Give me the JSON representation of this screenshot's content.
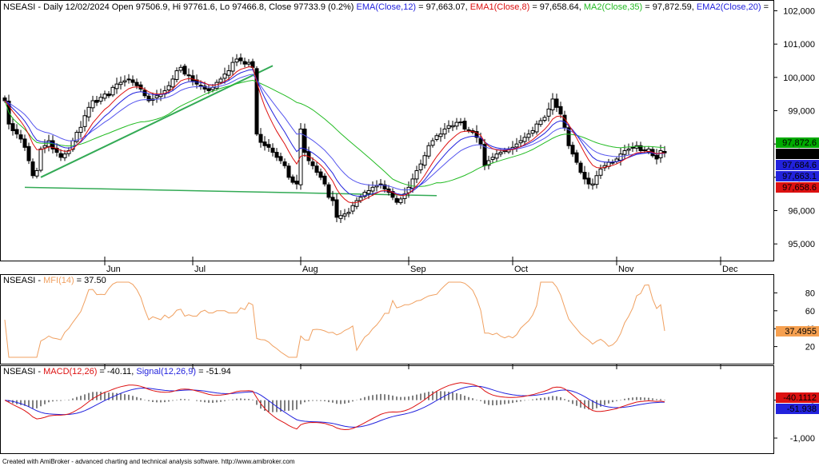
{
  "colors": {
    "ema12": "#2222dd",
    "ema8": "#dd1111",
    "ma35": "#22bb22",
    "ema20": "#5555ee",
    "trendline": "#33aa55",
    "mfi": "#f0a060",
    "macd": "#dd1111",
    "signal": "#2222dd",
    "tag_black": "#000000",
    "tag_green": "#00aa00",
    "tag_blue": "#2222dd",
    "tag_red": "#dd1111",
    "tag_orange": "#f6a050"
  },
  "header": {
    "price": [
      {
        "text": "NSEASI - Daily 12/02/2024 Open 97506.9, Hi 97761.6, Lo 97466.8, Close 97733.9 (0.2%) ",
        "color": "#000000"
      },
      {
        "text": "EMA(Close,12)",
        "color": "#2222dd"
      },
      {
        "text": " = 97,663.07, ",
        "color": "#000000"
      },
      {
        "text": "EMA1(Close,8)",
        "color": "#dd1111"
      },
      {
        "text": " = 97,658.64, ",
        "color": "#000000"
      },
      {
        "text": "MA2(Close,35)",
        "color": "#22bb22"
      },
      {
        "text": " = 97,872.59, ",
        "color": "#000000"
      },
      {
        "text": "EMA2(Close,20)",
        "color": "#2222dd"
      },
      {
        "text": " =",
        "color": "#000000"
      }
    ],
    "mfi": [
      {
        "text": "NSEASI - ",
        "color": "#000000"
      },
      {
        "text": "MFI(14)",
        "color": "#f0a060"
      },
      {
        "text": " = 37.50",
        "color": "#000000"
      }
    ],
    "macd": [
      {
        "text": "NSEASI - ",
        "color": "#000000"
      },
      {
        "text": "MACD(12,26)",
        "color": "#dd1111"
      },
      {
        "text": " = -40.11, ",
        "color": "#000000"
      },
      {
        "text": "Signal(12,26,9)",
        "color": "#2222dd"
      },
      {
        "text": " = -51.94",
        "color": "#000000"
      }
    ]
  },
  "price_axis": {
    "ticks": [
      {
        "value": 95000,
        "label": "95,000"
      },
      {
        "value": 96000,
        "label": "96,000"
      },
      {
        "value": 97000,
        "label": "97,000"
      },
      {
        "value": 98000,
        "label": "98,000"
      },
      {
        "value": 99000,
        "label": "99,000"
      },
      {
        "value": 100000,
        "label": "100,000"
      },
      {
        "value": 101000,
        "label": "101,000"
      },
      {
        "value": 102000,
        "label": "102,000"
      }
    ],
    "tags": [
      {
        "text": "97,872.6",
        "value": 97872.6,
        "bg": "#00aa00"
      },
      {
        "text": "97,733.9",
        "value": 97733.9,
        "bg": "#000000"
      },
      {
        "text": "97,684.6",
        "value": 97684.6,
        "bg": "#2222dd"
      },
      {
        "text": "97,663.1",
        "value": 97663.1,
        "bg": "#2222dd"
      },
      {
        "text": "97,658.6",
        "value": 97658.6,
        "bg": "#dd1111"
      }
    ]
  },
  "mfi_axis": {
    "ticks": [
      {
        "value": 20,
        "label": "20"
      },
      {
        "value": 40,
        "label": "40"
      },
      {
        "value": 60,
        "label": "60"
      },
      {
        "value": 80,
        "label": "80"
      }
    ],
    "tag": {
      "text": "37.4955",
      "value": 37.4955,
      "bg": "#f6a050"
    }
  },
  "macd_axis": {
    "ticks": [
      {
        "value": -1000,
        "label": "-1,000"
      },
      {
        "value": 0,
        "label": "0"
      }
    ],
    "tags": [
      {
        "text": "-40.1112",
        "value": -40.11,
        "bg": "#dd1111"
      },
      {
        "text": "-51.938",
        "value": -51.94,
        "bg": "#2222dd"
      }
    ]
  },
  "months": [
    {
      "label": "Jun",
      "bar": 25
    },
    {
      "label": "Jul",
      "bar": 47
    },
    {
      "label": "Aug",
      "bar": 74
    },
    {
      "label": "Sep",
      "bar": 101
    },
    {
      "label": "Oct",
      "bar": 127
    },
    {
      "label": "Nov",
      "bar": 153
    },
    {
      "label": "Dec",
      "bar": 179
    }
  ],
  "footer": "Created with AmiBroker - advanced charting and technical analysis software. http://www.amibroker.com",
  "chart_data": {
    "type": "candlestick",
    "title": "NSEASI - Daily 12/02/2024 Open 97506.9, Hi 97761.6, Lo 97466.8, Close 97733.9 (0.2%)",
    "ylim": [
      94500,
      102300
    ],
    "closes": [
      99300,
      98600,
      98400,
      98300,
      98150,
      97900,
      97500,
      97050,
      97200,
      97850,
      97950,
      98100,
      97850,
      97750,
      97600,
      97700,
      97800,
      98100,
      98350,
      98500,
      98850,
      99100,
      99300,
      99250,
      99400,
      99500,
      99450,
      99700,
      99800,
      99850,
      99900,
      99950,
      99850,
      99750,
      99650,
      99450,
      99300,
      99350,
      99450,
      99500,
      99600,
      99750,
      99950,
      100200,
      100300,
      100100,
      100050,
      99900,
      99800,
      99750,
      99650,
      99600,
      99700,
      99850,
      99950,
      100100,
      100200,
      100450,
      100550,
      100500,
      100400,
      100450,
      100300,
      98300,
      98050,
      97950,
      97900,
      97750,
      97600,
      97500,
      97350,
      97000,
      96850,
      96800,
      98450,
      97750,
      97500,
      97350,
      97150,
      97000,
      96800,
      96400,
      96300,
      95800,
      95850,
      95900,
      95950,
      96150,
      96300,
      96400,
      96550,
      96600,
      96700,
      96750,
      96800,
      96650,
      96550,
      96400,
      96250,
      96350,
      96500,
      96700,
      96950,
      97200,
      97400,
      97650,
      97950,
      98100,
      98250,
      98300,
      98450,
      98550,
      98550,
      98650,
      98650,
      98450,
      98400,
      98350,
      98200,
      98000,
      97350,
      97500,
      97600,
      97700,
      97750,
      97800,
      97850,
      97900,
      98000,
      98100,
      98200,
      98300,
      98400,
      98600,
      98700,
      98800,
      99050,
      99350,
      99100,
      98900,
      98500,
      97950,
      97700,
      97450,
      97150,
      96950,
      96800,
      96800,
      97050,
      97250,
      97350,
      97450,
      97450,
      97550,
      97700,
      97800,
      97850,
      97900,
      97950,
      97800,
      97800,
      97850,
      97650,
      97550,
      97800,
      97733.9
    ],
    "ma35_last": 97872.59,
    "ema12_last": 97663.07,
    "ema8_last": 97658.64,
    "ema20_last": 97684.6,
    "mfi_last": 37.5,
    "macd_last": -40.11,
    "signal_last": -51.94
  }
}
